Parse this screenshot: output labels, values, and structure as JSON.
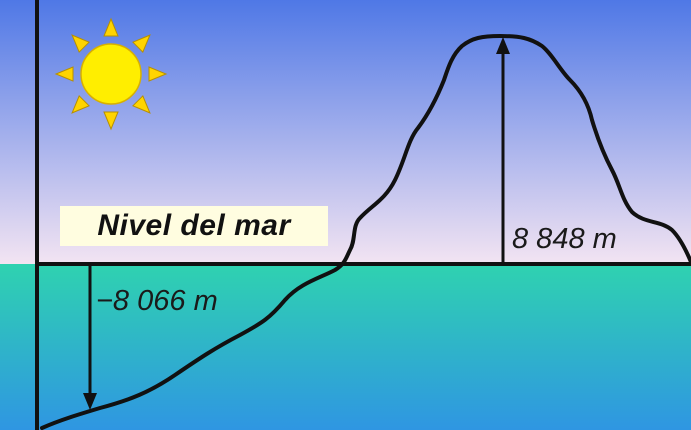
{
  "labels": {
    "sea_level": "Nivel del mar",
    "height": "8 848 m",
    "depth": "−8 066 m"
  },
  "colors": {
    "sky_top": "#4f78e6",
    "sky_bottom": "#f3e4f2",
    "sea_top": "#2fd2b0",
    "sea_bottom": "#2f96e2",
    "sun": "#ffee00",
    "sun_rays": "#ffd400",
    "ink": "#111111",
    "label_background": "#fffde0"
  },
  "icons": {
    "sun": "sun-icon"
  }
}
